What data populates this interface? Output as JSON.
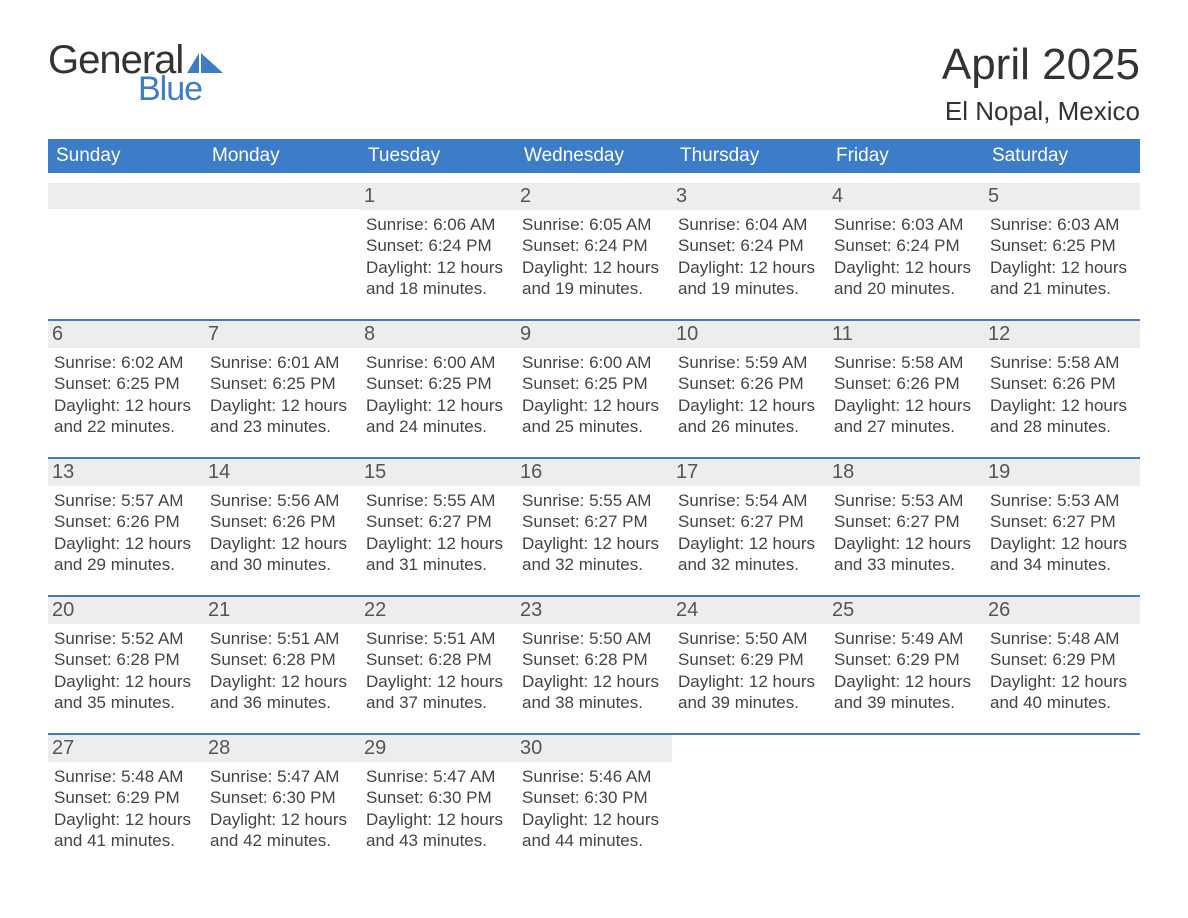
{
  "brand": {
    "word1": "General",
    "word2": "Blue",
    "text_color": "#333333",
    "accent_color": "#3d7cc9"
  },
  "title": {
    "month_year": "April 2025",
    "location": "El Nopal, Mexico",
    "title_fontsize": 44,
    "location_fontsize": 26
  },
  "colors": {
    "header_bg": "#3d7cc9",
    "header_text": "#ffffff",
    "daynum_bg": "#ededed",
    "daynum_text": "#555555",
    "body_text": "#444444",
    "week_border": "#3d7cc9",
    "page_bg": "#ffffff"
  },
  "day_headers": [
    "Sunday",
    "Monday",
    "Tuesday",
    "Wednesday",
    "Thursday",
    "Friday",
    "Saturday"
  ],
  "weeks": [
    [
      {
        "n": "",
        "lines": ""
      },
      {
        "n": "",
        "lines": ""
      },
      {
        "n": "1",
        "lines": "Sunrise: 6:06 AM\nSunset: 6:24 PM\nDaylight: 12 hours and 18 minutes."
      },
      {
        "n": "2",
        "lines": "Sunrise: 6:05 AM\nSunset: 6:24 PM\nDaylight: 12 hours and 19 minutes."
      },
      {
        "n": "3",
        "lines": "Sunrise: 6:04 AM\nSunset: 6:24 PM\nDaylight: 12 hours and 19 minutes."
      },
      {
        "n": "4",
        "lines": "Sunrise: 6:03 AM\nSunset: 6:24 PM\nDaylight: 12 hours and 20 minutes."
      },
      {
        "n": "5",
        "lines": "Sunrise: 6:03 AM\nSunset: 6:25 PM\nDaylight: 12 hours and 21 minutes."
      }
    ],
    [
      {
        "n": "6",
        "lines": "Sunrise: 6:02 AM\nSunset: 6:25 PM\nDaylight: 12 hours and 22 minutes."
      },
      {
        "n": "7",
        "lines": "Sunrise: 6:01 AM\nSunset: 6:25 PM\nDaylight: 12 hours and 23 minutes."
      },
      {
        "n": "8",
        "lines": "Sunrise: 6:00 AM\nSunset: 6:25 PM\nDaylight: 12 hours and 24 minutes."
      },
      {
        "n": "9",
        "lines": "Sunrise: 6:00 AM\nSunset: 6:25 PM\nDaylight: 12 hours and 25 minutes."
      },
      {
        "n": "10",
        "lines": "Sunrise: 5:59 AM\nSunset: 6:26 PM\nDaylight: 12 hours and 26 minutes."
      },
      {
        "n": "11",
        "lines": "Sunrise: 5:58 AM\nSunset: 6:26 PM\nDaylight: 12 hours and 27 minutes."
      },
      {
        "n": "12",
        "lines": "Sunrise: 5:58 AM\nSunset: 6:26 PM\nDaylight: 12 hours and 28 minutes."
      }
    ],
    [
      {
        "n": "13",
        "lines": "Sunrise: 5:57 AM\nSunset: 6:26 PM\nDaylight: 12 hours and 29 minutes."
      },
      {
        "n": "14",
        "lines": "Sunrise: 5:56 AM\nSunset: 6:26 PM\nDaylight: 12 hours and 30 minutes."
      },
      {
        "n": "15",
        "lines": "Sunrise: 5:55 AM\nSunset: 6:27 PM\nDaylight: 12 hours and 31 minutes."
      },
      {
        "n": "16",
        "lines": "Sunrise: 5:55 AM\nSunset: 6:27 PM\nDaylight: 12 hours and 32 minutes."
      },
      {
        "n": "17",
        "lines": "Sunrise: 5:54 AM\nSunset: 6:27 PM\nDaylight: 12 hours and 32 minutes."
      },
      {
        "n": "18",
        "lines": "Sunrise: 5:53 AM\nSunset: 6:27 PM\nDaylight: 12 hours and 33 minutes."
      },
      {
        "n": "19",
        "lines": "Sunrise: 5:53 AM\nSunset: 6:27 PM\nDaylight: 12 hours and 34 minutes."
      }
    ],
    [
      {
        "n": "20",
        "lines": "Sunrise: 5:52 AM\nSunset: 6:28 PM\nDaylight: 12 hours and 35 minutes."
      },
      {
        "n": "21",
        "lines": "Sunrise: 5:51 AM\nSunset: 6:28 PM\nDaylight: 12 hours and 36 minutes."
      },
      {
        "n": "22",
        "lines": "Sunrise: 5:51 AM\nSunset: 6:28 PM\nDaylight: 12 hours and 37 minutes."
      },
      {
        "n": "23",
        "lines": "Sunrise: 5:50 AM\nSunset: 6:28 PM\nDaylight: 12 hours and 38 minutes."
      },
      {
        "n": "24",
        "lines": "Sunrise: 5:50 AM\nSunset: 6:29 PM\nDaylight: 12 hours and 39 minutes."
      },
      {
        "n": "25",
        "lines": "Sunrise: 5:49 AM\nSunset: 6:29 PM\nDaylight: 12 hours and 39 minutes."
      },
      {
        "n": "26",
        "lines": "Sunrise: 5:48 AM\nSunset: 6:29 PM\nDaylight: 12 hours and 40 minutes."
      }
    ],
    [
      {
        "n": "27",
        "lines": "Sunrise: 5:48 AM\nSunset: 6:29 PM\nDaylight: 12 hours and 41 minutes."
      },
      {
        "n": "28",
        "lines": "Sunrise: 5:47 AM\nSunset: 6:30 PM\nDaylight: 12 hours and 42 minutes."
      },
      {
        "n": "29",
        "lines": "Sunrise: 5:47 AM\nSunset: 6:30 PM\nDaylight: 12 hours and 43 minutes."
      },
      {
        "n": "30",
        "lines": "Sunrise: 5:46 AM\nSunset: 6:30 PM\nDaylight: 12 hours and 44 minutes."
      },
      {
        "n": "",
        "lines": ""
      },
      {
        "n": "",
        "lines": ""
      },
      {
        "n": "",
        "lines": ""
      }
    ]
  ]
}
